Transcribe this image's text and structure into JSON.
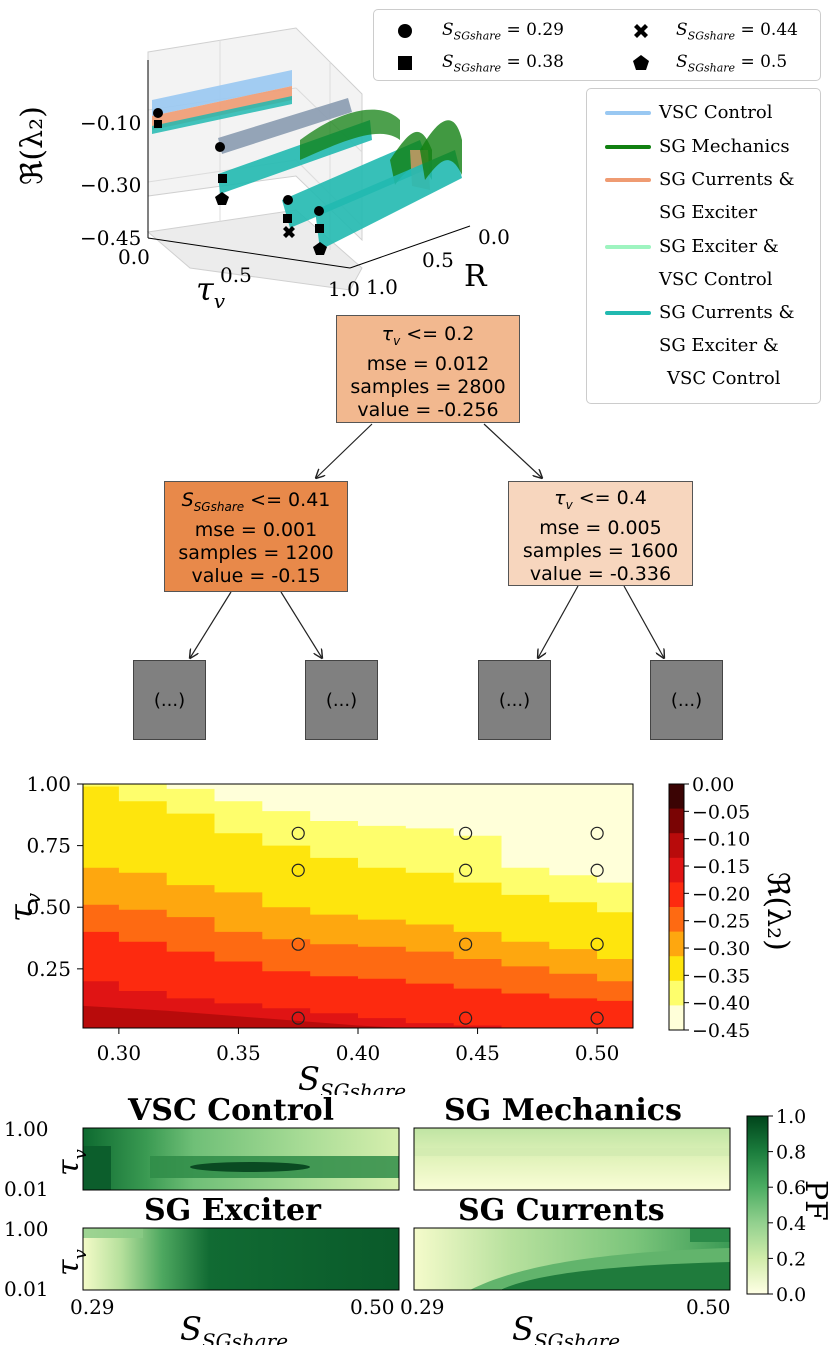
{
  "top_legend": {
    "items": [
      {
        "label": "S_SGshare = 0.29",
        "sym": "S",
        "sub": "SGshare",
        "val": " = 0.29",
        "marker": "circle"
      },
      {
        "label": "S_SGshare = 0.44",
        "sym": "S",
        "sub": "SGshare",
        "val": " = 0.44",
        "marker": "cross"
      },
      {
        "label": "S_SGshare = 0.38",
        "sym": "S",
        "sub": "SGshare",
        "val": " = 0.38",
        "marker": "square"
      },
      {
        "label": "S_SGshare = 0.5",
        "sym": "S",
        "sub": "SGshare",
        "val": " = 0.5",
        "marker": "pentagon"
      }
    ]
  },
  "mode_legend": {
    "items": [
      {
        "lines": [
          "VSC Control"
        ],
        "color": "#99c8f2"
      },
      {
        "lines": [
          "SG Mechanics"
        ],
        "color": "#118011"
      },
      {
        "lines": [
          "SG Currents &",
          "SG Exciter"
        ],
        "color": "#ef9b72"
      },
      {
        "lines": [
          "SG Exciter &",
          "VSC Control"
        ],
        "color": "#9ef4c0"
      },
      {
        "lines": [
          "SG Currents &",
          "SG Exciter &",
          "VSC Control"
        ],
        "color": "#21b9b0"
      }
    ]
  },
  "plot3d": {
    "z_label": "ℜ(λ₂)",
    "z_ticks": [
      "−0.10",
      "−0.30",
      "−0.45"
    ],
    "x_label": "τ",
    "x_label_sub": "v",
    "x_ticks": [
      "0.0",
      "0.5",
      "1.0"
    ],
    "y_label": "R",
    "y_ticks": [
      "0.0",
      "0.5",
      "1.0"
    ]
  },
  "tree": {
    "root": {
      "lines": [
        "τv <= 0.2",
        "mse = 0.012",
        "samples = 2800",
        "value = -0.256"
      ],
      "color": "#f2b88f"
    },
    "left": {
      "lines": [
        "SSGshare <= 0.41",
        "mse = 0.001",
        "samples = 1200",
        "value = -0.15"
      ],
      "color": "#e8894a"
    },
    "right": {
      "lines": [
        "τv <= 0.4",
        "mse = 0.005",
        "samples = 1600",
        "value = -0.336"
      ],
      "color": "#f7d6be"
    },
    "ellipsis": "(...)"
  },
  "contour": {
    "xlabel": "S",
    "xlabel_sub": "SGshare",
    "ylabel": "τ",
    "ylabel_sub": "v",
    "x_ticks": [
      "0.30",
      "0.35",
      "0.40",
      "0.45",
      "0.50"
    ],
    "y_ticks": [
      "1.00",
      "0.75",
      "0.50",
      "0.25"
    ],
    "colorbar_label": "ℜ(λ₂)",
    "colorbar_ticks": [
      "0.00",
      "−0.05",
      "−0.10",
      "−0.15",
      "−0.20",
      "−0.25",
      "−0.30",
      "−0.35",
      "−0.40",
      "−0.45"
    ]
  },
  "chart_data": [
    {
      "type": "scatter",
      "title": "",
      "xlabel": "τv",
      "ylabel": "R",
      "zlabel": "ℜ(λ2)",
      "zlim": [
        -0.45,
        -0.05
      ],
      "series": [
        {
          "name": "S_SGshare = 0.29",
          "marker": "circle",
          "z_range": [
            -0.12,
            -0.08
          ]
        },
        {
          "name": "S_SGshare = 0.38",
          "marker": "square",
          "z_range": [
            -0.25,
            -0.15
          ]
        },
        {
          "name": "S_SGshare = 0.44",
          "marker": "cross",
          "z_range": [
            -0.4,
            -0.3
          ]
        },
        {
          "name": "S_SGshare = 0.5",
          "marker": "pentagon",
          "z_range": [
            -0.45,
            -0.35
          ]
        }
      ]
    },
    {
      "type": "heatmap",
      "title": "",
      "xlabel": "SSGshare",
      "ylabel": "τv",
      "xlim": [
        0.285,
        0.515
      ],
      "ylim": [
        0.01,
        1.0
      ],
      "levels": [
        0.0,
        -0.05,
        -0.1,
        -0.15,
        -0.2,
        -0.25,
        -0.3,
        -0.35,
        -0.4,
        -0.45
      ],
      "level_colors": [
        "#3b0404",
        "#7a0404",
        "#b80b0b",
        "#e01414",
        "#fd2a0f",
        "#fe6a12",
        "#fea70f",
        "#fee50d",
        "#fefe6c",
        "#ffffd9"
      ],
      "boundaries": {
        "x": [
          0.285,
          0.3,
          0.32,
          0.34,
          0.36,
          0.38,
          0.4,
          0.42,
          0.44,
          0.46,
          0.48,
          0.5,
          0.515
        ],
        "b_m40": [
          null,
          null,
          0.98,
          0.93,
          0.89,
          0.85,
          0.83,
          0.82,
          0.79,
          0.66,
          0.63,
          0.6,
          0.59
        ],
        "b_m35": [
          0.99,
          0.93,
          0.88,
          0.8,
          0.75,
          0.7,
          0.66,
          0.64,
          0.6,
          0.55,
          0.52,
          0.48,
          0.44
        ],
        "b_m30": [
          0.66,
          0.64,
          0.59,
          0.56,
          0.5,
          0.47,
          0.45,
          0.43,
          0.4,
          0.36,
          0.33,
          0.29,
          0.25
        ],
        "b_m25": [
          0.51,
          0.49,
          0.46,
          0.4,
          0.37,
          0.35,
          0.34,
          0.32,
          0.29,
          0.26,
          0.23,
          0.2,
          0.17
        ],
        "b_m20": [
          0.4,
          0.36,
          0.32,
          0.28,
          0.24,
          0.22,
          0.21,
          0.19,
          0.17,
          0.15,
          0.13,
          0.12,
          0.11
        ],
        "b_m15": [
          0.2,
          0.16,
          0.13,
          0.11,
          0.09,
          0.07,
          0.05,
          0.03,
          0.02,
          0.01,
          0.01,
          0.01,
          0.01
        ]
      },
      "markers": [
        {
          "x": 0.375,
          "y": 0.8
        },
        {
          "x": 0.375,
          "y": 0.65
        },
        {
          "x": 0.375,
          "y": 0.35
        },
        {
          "x": 0.375,
          "y": 0.05
        },
        {
          "x": 0.445,
          "y": 0.8
        },
        {
          "x": 0.445,
          "y": 0.65
        },
        {
          "x": 0.445,
          "y": 0.35
        },
        {
          "x": 0.445,
          "y": 0.05
        },
        {
          "x": 0.5,
          "y": 0.8
        },
        {
          "x": 0.5,
          "y": 0.65
        },
        {
          "x": 0.5,
          "y": 0.35
        },
        {
          "x": 0.5,
          "y": 0.05
        }
      ]
    },
    {
      "type": "heatmap",
      "title": "VSC Control",
      "xlim": [
        0.29,
        0.5
      ],
      "ylim": [
        0.01,
        1.0
      ],
      "colorbar_ticks": [
        "1.0",
        "0.8",
        "0.6",
        "0.4",
        "0.2",
        "0.0"
      ],
      "colorbar_label": "PF"
    },
    {
      "type": "heatmap",
      "title": "SG Mechanics",
      "xlim": [
        0.29,
        0.5
      ],
      "ylim": [
        0.01,
        1.0
      ]
    },
    {
      "type": "heatmap",
      "title": "SG Exciter",
      "xlim": [
        0.29,
        0.5
      ],
      "ylim": [
        0.01,
        1.0
      ]
    },
    {
      "type": "heatmap",
      "title": "SG Currents",
      "xlim": [
        0.29,
        0.5
      ],
      "ylim": [
        0.01,
        1.0
      ]
    }
  ],
  "pf_panels": {
    "titles": [
      "VSC Control",
      "SG Mechanics",
      "SG Exciter",
      "SG Currents"
    ],
    "y_ticks": [
      "1.00",
      "0.01"
    ],
    "ylabel": "τ",
    "ylabel_sub": "v",
    "x_ticks_left": [
      "0.29",
      "0.50"
    ],
    "x_ticks_right": [
      "0.29",
      "0.50"
    ],
    "xlabel": "S",
    "xlabel_sub": "SGshare",
    "colorbar_ticks": [
      "1.0",
      "0.8",
      "0.6",
      "0.4",
      "0.2",
      "0.0"
    ],
    "colorbar_label": "PF"
  }
}
